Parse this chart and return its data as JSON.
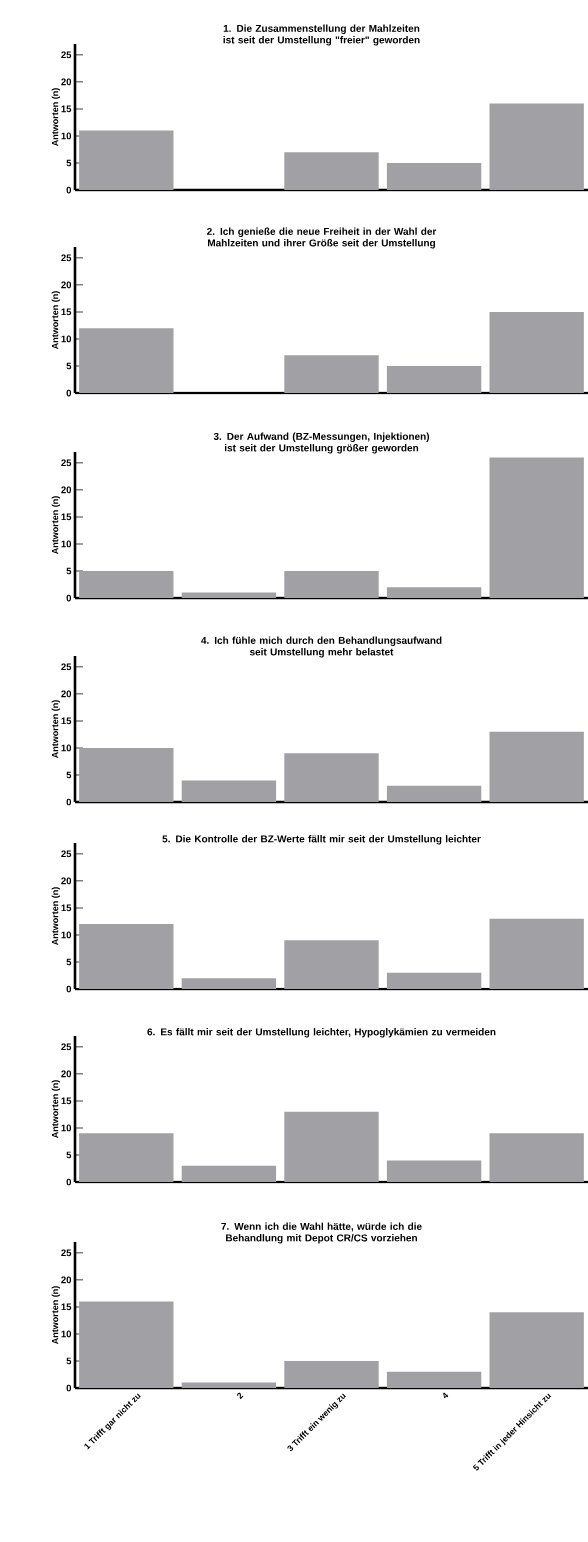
{
  "chart_data": [
    {
      "type": "bar",
      "title": "1. Die Zusammenstellung der Mahlzeiten ist seit der Umstellung \"freier\" geworden",
      "ylabel": "Antworten (n)",
      "categories": [
        null,
        null,
        null,
        null,
        null
      ],
      "values": [
        11,
        0,
        7,
        5,
        16
      ],
      "color": "#a1a0a5",
      "ylim": [
        0,
        27
      ],
      "yticks": [
        0,
        5,
        10,
        15,
        20,
        25
      ],
      "tick_labels": "y"
    },
    {
      "type": "bar",
      "title": "2. Ich genieße die neue Freiheit in der Wahl der Mahlzeiten und ihrer Größe seit der Umstellung",
      "ylabel": "Antworten (n)",
      "categories": [
        null,
        null,
        null,
        null,
        null
      ],
      "values": [
        12,
        0,
        7,
        5,
        15
      ],
      "color": "#a1a0a5",
      "ylim": [
        0,
        27
      ],
      "yticks": [
        0,
        5,
        10,
        15,
        20,
        25
      ],
      "tick_labels": "y"
    },
    {
      "type": "bar",
      "title": "3. Der Aufwand (BZ-Messungen, Injektionen) ist seit der Umstellung größer geworden",
      "ylabel": "Antworten (n)",
      "categories": [
        null,
        null,
        null,
        null,
        null
      ],
      "values": [
        5,
        1,
        5,
        2,
        26
      ],
      "color": "#a1a0a5",
      "ylim": [
        0,
        27
      ],
      "yticks": [
        0,
        5,
        10,
        15,
        20,
        25
      ],
      "tick_labels": "y"
    },
    {
      "type": "bar",
      "title": "4. Ich fühle mich durch den Behandlungsaufwand seit Umstellung mehr belastet",
      "ylabel": "Antworten (n)",
      "categories": [
        null,
        null,
        null,
        null,
        null
      ],
      "values": [
        10,
        4,
        9,
        3,
        13
      ],
      "color": "#a1a0a5",
      "ylim": [
        0,
        27
      ],
      "yticks": [
        0,
        5,
        10,
        15,
        20,
        25
      ],
      "tick_labels": "y"
    },
    {
      "type": "bar",
      "title": "5. Die Kontrolle der BZ-Werte fällt mir seit der Umstellung leichter",
      "ylabel": "Antworten (n)",
      "categories": [
        null,
        null,
        null,
        null,
        null
      ],
      "values": [
        12,
        2,
        9,
        3,
        13
      ],
      "color": "#a1a0a5",
      "ylim": [
        0,
        27
      ],
      "yticks": [
        0,
        5,
        10,
        15,
        20,
        25
      ],
      "tick_labels": "y"
    },
    {
      "type": "bar",
      "title": "6. Es fällt mir seit der Umstellung leichter, Hypoglykämien zu vermeiden",
      "ylabel": "Antworten (n)",
      "categories": [
        null,
        null,
        null,
        null,
        null
      ],
      "values": [
        9,
        3,
        13,
        4,
        9
      ],
      "color": "#a1a0a5",
      "ylim": [
        0,
        27
      ],
      "yticks": [
        0,
        5,
        10,
        15,
        20,
        25
      ],
      "tick_labels": "y"
    },
    {
      "type": "bar",
      "title": "7. Wenn ich die Wahl hätte, würde ich die Behandlung mit Depot CR/CS vorziehen",
      "ylabel": "Antworten (n)",
      "categories": [
        "1 Trifft gar nicht zu",
        "2",
        "3 Trifft ein wenig zu",
        "4",
        "5 Trifft in jeder Hinsicht zu"
      ],
      "values": [
        16,
        1,
        5,
        3,
        14
      ],
      "color": "#a1a0a5",
      "ylim": [
        0,
        27
      ],
      "yticks": [
        0,
        5,
        10,
        15,
        20,
        25
      ]
    }
  ]
}
